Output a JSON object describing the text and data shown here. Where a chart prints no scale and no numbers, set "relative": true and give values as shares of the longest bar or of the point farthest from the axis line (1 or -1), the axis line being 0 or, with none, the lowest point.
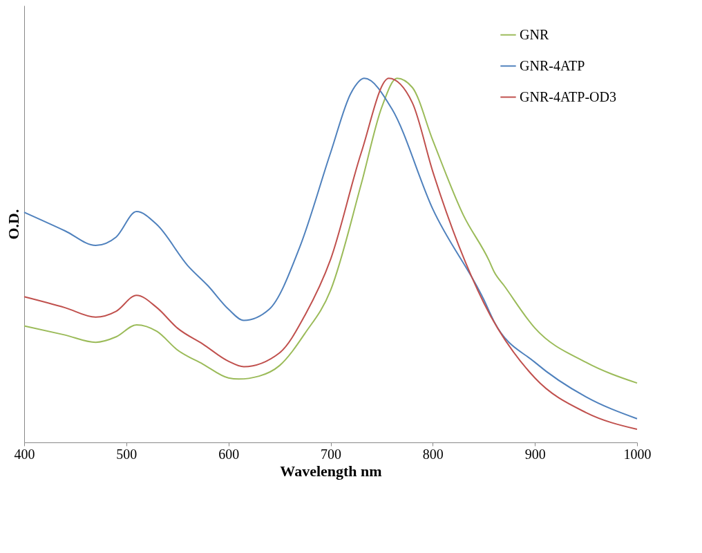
{
  "chart_data": {
    "type": "line",
    "relative": true,
    "xlabel": "Wavelength nm",
    "ylabel": "O.D.",
    "xlim": [
      400,
      1000
    ],
    "xticks": [
      400,
      500,
      600,
      700,
      800,
      900,
      1000
    ],
    "grid": false,
    "legend": "top right",
    "marker": "none",
    "line_style": "solid",
    "series": [
      {
        "name": "GNR",
        "color": "#9bbb59",
        "x": [
          400,
          440,
          470,
          490,
          510,
          530,
          550,
          575,
          600,
          610,
          630,
          650,
          675,
          700,
          730,
          750,
          765,
          780,
          800,
          830,
          855,
          860,
          870,
          900,
          950,
          1000
        ],
        "values": [
          0.32,
          0.295,
          0.275,
          0.29,
          0.323,
          0.305,
          0.254,
          0.215,
          0.177,
          0.174,
          0.182,
          0.211,
          0.3,
          0.418,
          0.71,
          0.92,
          1,
          0.975,
          0.83,
          0.624,
          0.5,
          0.469,
          0.43,
          0.314,
          0.22,
          0.163
        ]
      },
      {
        "name": "GNR-4ATP",
        "color": "#4f81bd",
        "x": [
          400,
          440,
          470,
          490,
          510,
          530,
          560,
          580,
          600,
          615,
          640,
          670,
          700,
          720,
          733,
          760,
          800,
          850,
          860,
          900,
          950,
          1000
        ],
        "values": [
          0.632,
          0.581,
          0.541,
          0.564,
          0.634,
          0.598,
          0.486,
          0.43,
          0.366,
          0.335,
          0.366,
          0.538,
          0.796,
          0.96,
          1,
          0.916,
          0.641,
          0.392,
          0.332,
          0.22,
          0.125,
          0.065
        ]
      },
      {
        "name": "GNR-4ATP-OD3",
        "color": "#c0504d",
        "x": [
          400,
          440,
          470,
          490,
          510,
          530,
          550,
          575,
          600,
          615,
          650,
          675,
          700,
          730,
          757,
          780,
          800,
          850,
          900,
          950,
          1000
        ],
        "values": [
          0.4,
          0.37,
          0.344,
          0.36,
          0.404,
          0.37,
          0.314,
          0.27,
          0.223,
          0.208,
          0.246,
          0.35,
          0.503,
          0.796,
          1,
          0.933,
          0.744,
          0.383,
          0.177,
          0.082,
          0.036
        ]
      }
    ]
  }
}
